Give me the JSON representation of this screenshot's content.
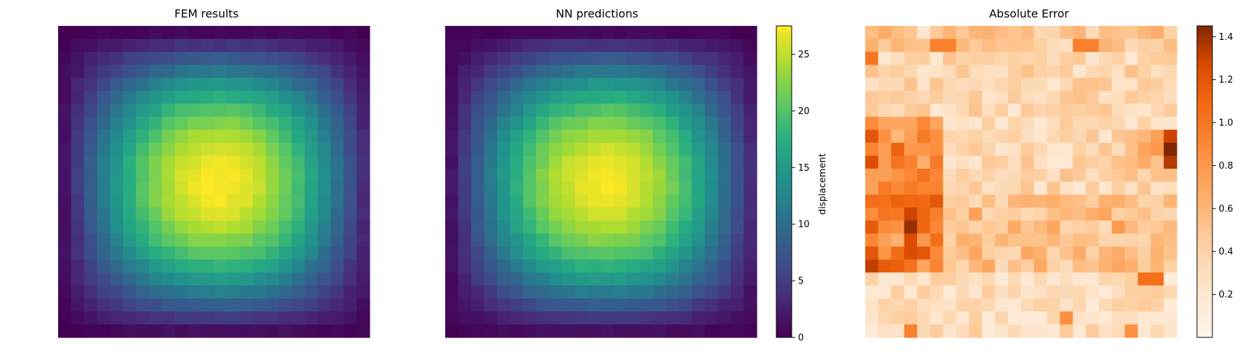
{
  "chart_data": [
    {
      "type": "heatmap",
      "title": "FEM results",
      "grid": {
        "rows": 24,
        "cols": 24
      },
      "colormap": "viridis",
      "value_range": [
        0,
        27.5
      ],
      "field": {
        "description": "smooth field, peak near row 11.6, col 11.8; zero at borders",
        "peak": 27.5,
        "center": [
          11.6,
          11.8
        ]
      },
      "axes": "off"
    },
    {
      "type": "heatmap",
      "title": "NN predictions",
      "grid": {
        "rows": 24,
        "cols": 24
      },
      "colormap": "viridis",
      "value_range": [
        0,
        27.5
      ],
      "field": {
        "description": "smooth field, peak near row 11.6, col 11.8; zero at borders",
        "peak": 27.3,
        "center": [
          11.6,
          11.8
        ]
      },
      "axes": "off",
      "colorbar": {
        "label": "displacement",
        "ticks": [
          "0",
          "5",
          "10",
          "15",
          "20",
          "25"
        ],
        "tick_values": [
          0,
          5,
          10,
          15,
          20,
          25
        ],
        "range": [
          0,
          27.5
        ]
      }
    },
    {
      "type": "heatmap",
      "title": "Absolute Error",
      "grid": {
        "rows": 24,
        "cols": 24
      },
      "colormap": "oranges",
      "value_range": [
        0,
        1.45
      ],
      "hot_spots": [
        {
          "row": 8,
          "col": 23,
          "value": 1.3
        },
        {
          "row": 9,
          "col": 23,
          "value": 1.45
        },
        {
          "row": 10,
          "col": 23,
          "value": 1.35
        },
        {
          "row": 15,
          "col": 3,
          "value": 1.4
        },
        {
          "row": 14,
          "col": 3,
          "value": 1.3
        },
        {
          "row": 16,
          "col": 3,
          "value": 1.25
        },
        {
          "row": 10,
          "col": 0,
          "value": 1.25
        },
        {
          "row": 8,
          "col": 0,
          "value": 1.2
        },
        {
          "row": 17,
          "col": 0,
          "value": 1.2
        },
        {
          "row": 15,
          "col": 4,
          "value": 1.1
        },
        {
          "row": 1,
          "col": 5,
          "value": 0.95
        },
        {
          "row": 1,
          "col": 6,
          "value": 0.95
        },
        {
          "row": 1,
          "col": 16,
          "value": 0.95
        },
        {
          "row": 1,
          "col": 17,
          "value": 0.95
        },
        {
          "row": 19,
          "col": 21,
          "value": 1.05
        },
        {
          "row": 19,
          "col": 22,
          "value": 1.05
        },
        {
          "row": 23,
          "col": 3,
          "value": 0.95
        },
        {
          "row": 22,
          "col": 15,
          "value": 0.85
        },
        {
          "row": 23,
          "col": 20,
          "value": 0.85
        },
        {
          "row": 2,
          "col": 0,
          "value": 1.0
        },
        {
          "row": 7,
          "col": 2,
          "value": 0.7
        },
        {
          "row": 12,
          "col": 2,
          "value": 0.9
        }
      ],
      "axes": "off",
      "colorbar": {
        "ticks": [
          "0.2",
          "0.4",
          "0.6",
          "0.8",
          "1.0",
          "1.2",
          "1.4"
        ],
        "tick_values": [
          0.2,
          0.4,
          0.6,
          0.8,
          1.0,
          1.2,
          1.4
        ],
        "range": [
          0,
          1.45
        ]
      }
    }
  ]
}
